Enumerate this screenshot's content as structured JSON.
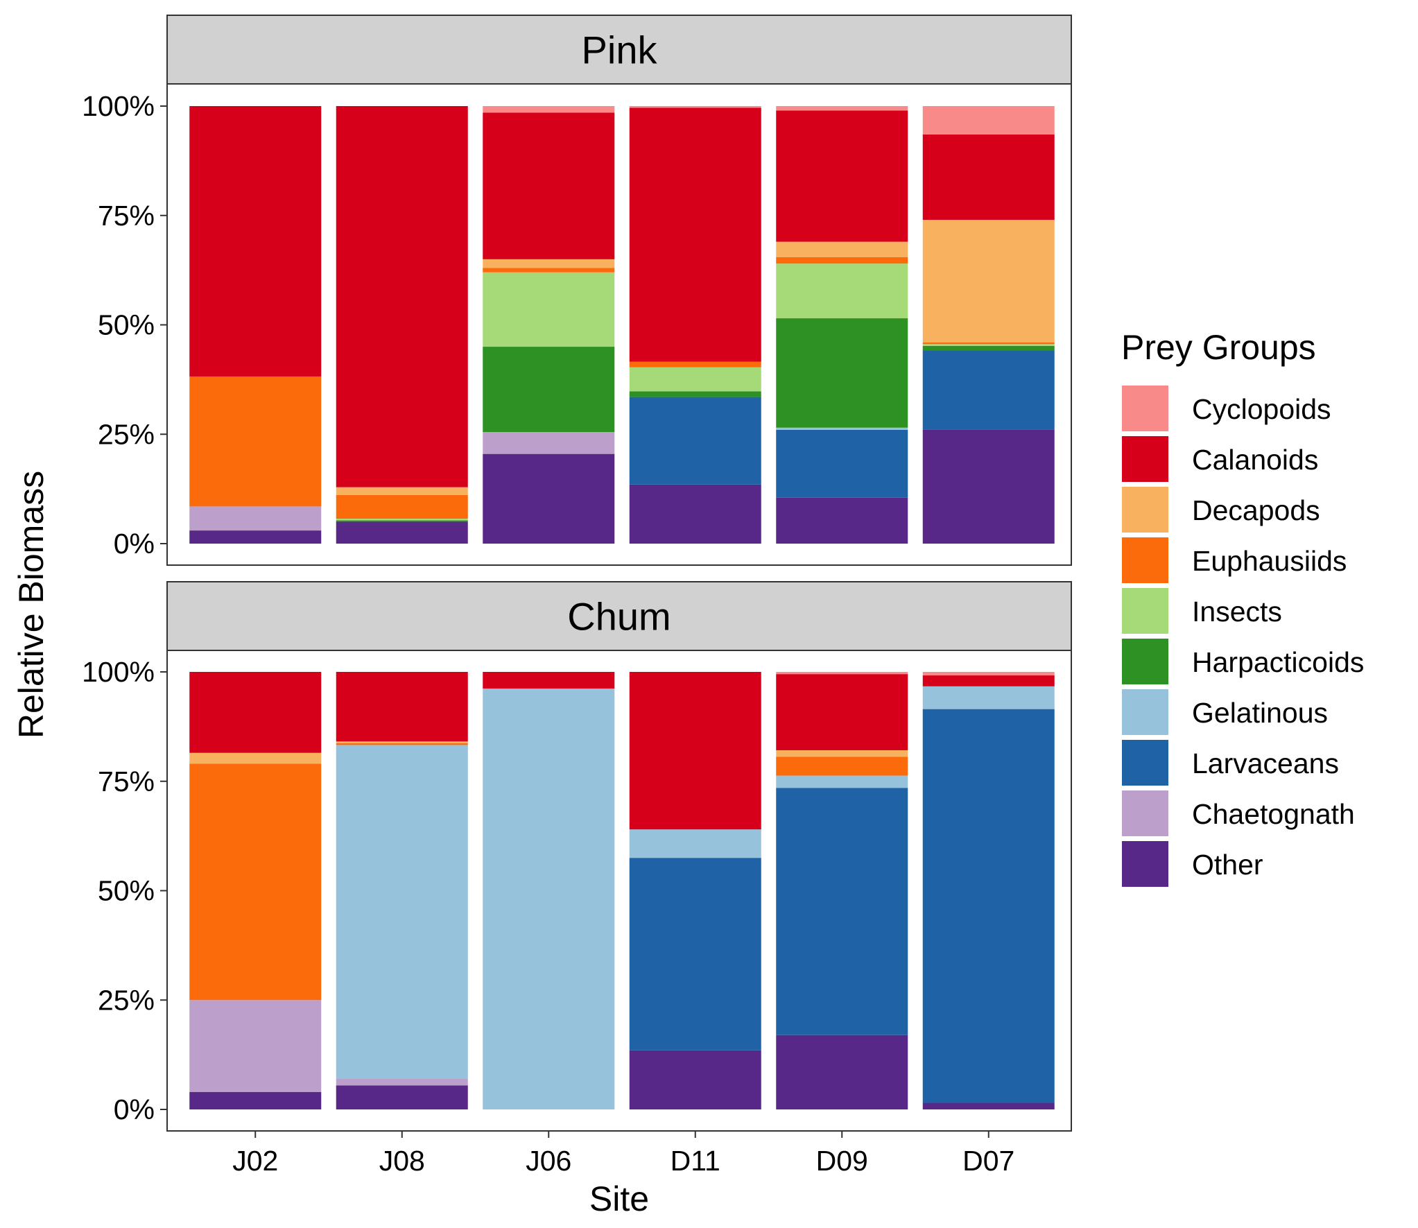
{
  "chart_data": {
    "type": "bar",
    "stacked": true,
    "normalized": true,
    "xlabel": "Site",
    "ylabel": "Relative Biomass",
    "ylim": [
      0,
      1
    ],
    "yticks": [
      "0%",
      "25%",
      "50%",
      "75%",
      "100%"
    ],
    "categories": [
      "J02",
      "J08",
      "J06",
      "D11",
      "D09",
      "D07"
    ],
    "legend": {
      "title": "Prey Groups",
      "position": "right",
      "entries": [
        "Cyclopoids",
        "Calanoids",
        "Decapods",
        "Euphausiids",
        "Insects",
        "Harpacticoids",
        "Gelatinous",
        "Larvaceans",
        "Chaetognath",
        "Other"
      ]
    },
    "colors": {
      "Cyclopoids": "#F88A89",
      "Calanoids": "#D7001B",
      "Decapods": "#F8B25F",
      "Euphausiids": "#FB6A0B",
      "Insects": "#A6DA79",
      "Harpacticoids": "#2D9124",
      "Gelatinous": "#96C2DC",
      "Larvaceans": "#1F63A6",
      "Chaetognath": "#BC9FCB",
      "Other": "#582888"
    },
    "panels": [
      {
        "title": "Pink",
        "stacks": {
          "J02": {
            "Other": 0.03,
            "Chaetognath": 0.055,
            "Euphausiids": 0.297,
            "Calanoids": 0.618
          },
          "J08": {
            "Other": 0.05,
            "Insects": 0.004,
            "Harpacticoids": 0.003,
            "Euphausiids": 0.054,
            "Decapods": 0.018,
            "Calanoids": 0.871
          },
          "J06": {
            "Other": 0.205,
            "Chaetognath": 0.05,
            "Harpacticoids": 0.195,
            "Insects": 0.17,
            "Euphausiids": 0.01,
            "Decapods": 0.02,
            "Calanoids": 0.335,
            "Cyclopoids": 0.015
          },
          "D11": {
            "Other": 0.135,
            "Larvaceans": 0.2,
            "Harpacticoids": 0.013,
            "Insects": 0.055,
            "Euphausiids": 0.013,
            "Calanoids": 0.58,
            "Cyclopoids": 0.004
          },
          "D09": {
            "Other": 0.105,
            "Larvaceans": 0.155,
            "Gelatinous": 0.005,
            "Harpacticoids": 0.25,
            "Insects": 0.125,
            "Euphausiids": 0.015,
            "Decapods": 0.035,
            "Calanoids": 0.3,
            "Cyclopoids": 0.01
          },
          "D07": {
            "Other": 0.26,
            "Larvaceans": 0.182,
            "Harpacticoids": 0.01,
            "Insects": 0.004,
            "Euphausiids": 0.004,
            "Decapods": 0.28,
            "Calanoids": 0.195,
            "Cyclopoids": 0.065
          }
        }
      },
      {
        "title": "Chum",
        "stacks": {
          "J02": {
            "Other": 0.04,
            "Chaetognath": 0.21,
            "Euphausiids": 0.54,
            "Decapods": 0.025,
            "Calanoids": 0.185
          },
          "J08": {
            "Other": 0.055,
            "Chaetognath": 0.016,
            "Gelatinous": 0.762,
            "Euphausiids": 0.004,
            "Decapods": 0.004,
            "Calanoids": 0.159
          },
          "J06": {
            "Gelatinous": 0.962,
            "Calanoids": 0.038
          },
          "D11": {
            "Other": 0.135,
            "Larvaceans": 0.44,
            "Gelatinous": 0.065,
            "Calanoids": 0.36
          },
          "D09": {
            "Other": 0.17,
            "Larvaceans": 0.565,
            "Gelatinous": 0.028,
            "Euphausiids": 0.043,
            "Decapods": 0.015,
            "Calanoids": 0.174,
            "Cyclopoids": 0.005
          },
          "D07": {
            "Other": 0.015,
            "Larvaceans": 0.9,
            "Gelatinous": 0.052,
            "Calanoids": 0.025,
            "Cyclopoids": 0.008
          }
        }
      }
    ]
  }
}
